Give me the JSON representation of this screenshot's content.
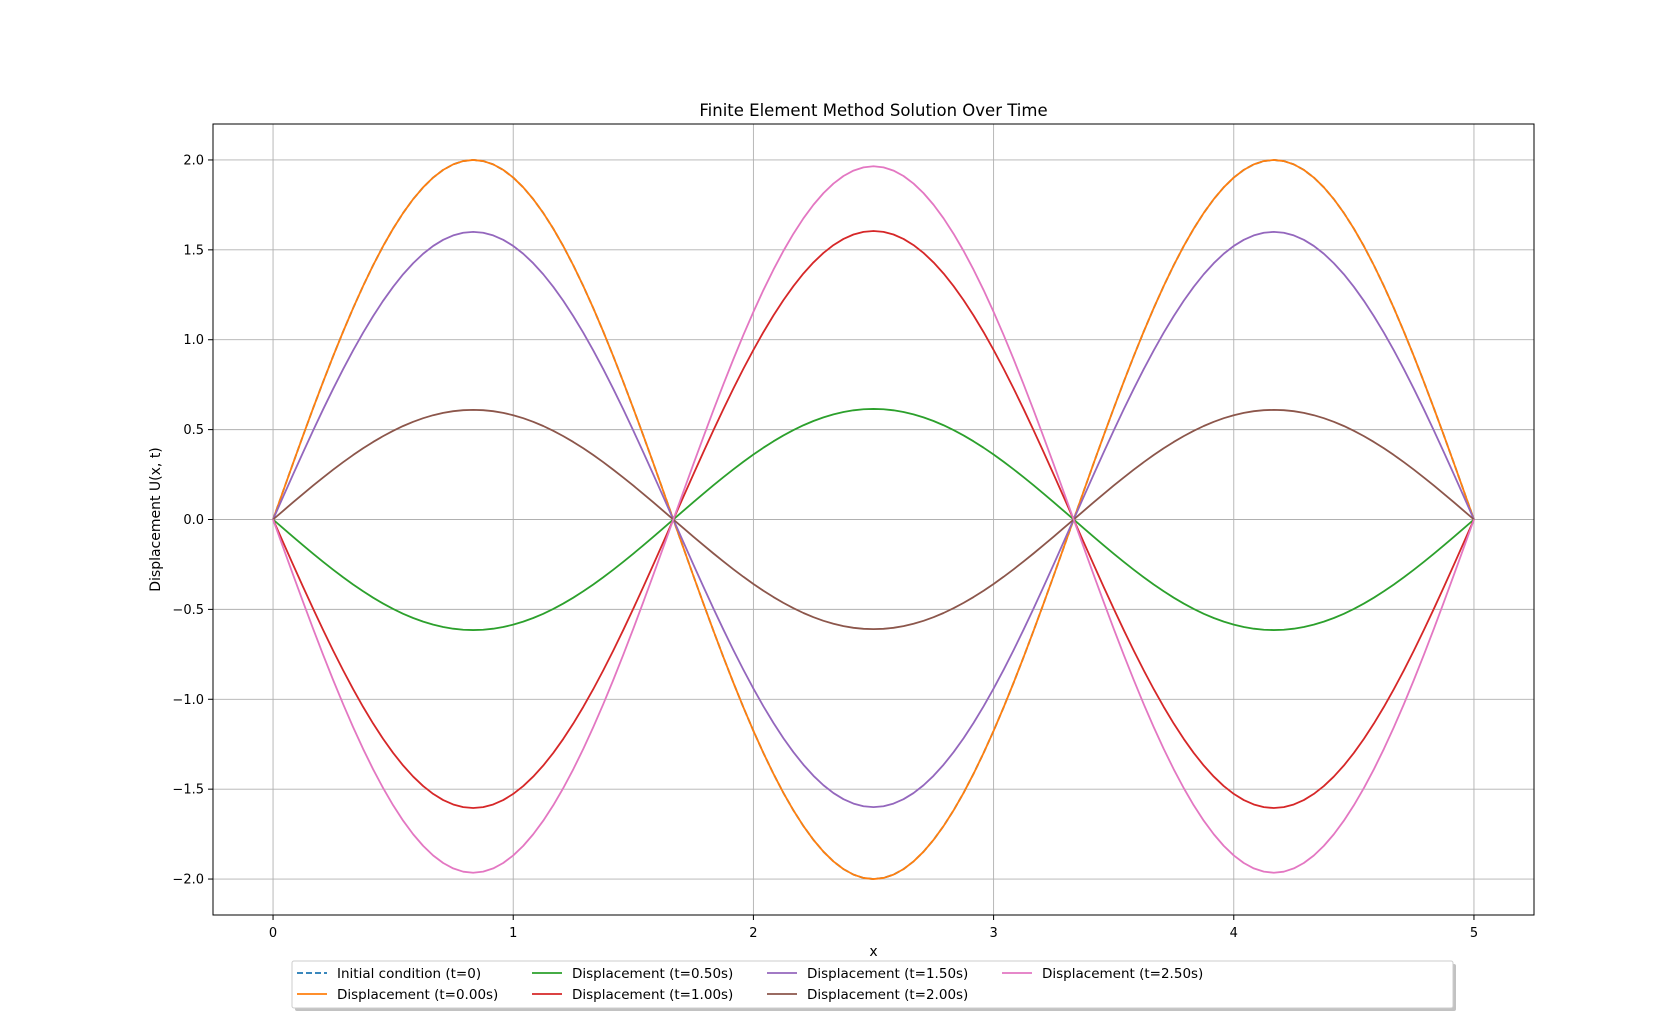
{
  "chart_data": {
    "type": "line",
    "title": "Finite Element Method Solution Over Time",
    "xlabel": "x",
    "ylabel": "Displacement U(x, t)",
    "xlim": [
      -0.25,
      5.25
    ],
    "ylim": [
      -2.2,
      2.2
    ],
    "xticks": [
      0,
      1,
      2,
      3,
      4,
      5
    ],
    "xtick_labels": [
      "0",
      "1",
      "2",
      "3",
      "4",
      "5"
    ],
    "yticks": [
      -2.0,
      -1.5,
      -1.0,
      -0.5,
      0.0,
      0.5,
      1.0,
      1.5,
      2.0
    ],
    "ytick_labels": [
      "−2.0",
      "−1.5",
      "−1.0",
      "−0.5",
      "0.0",
      "0.5",
      "1.0",
      "1.5",
      "2.0"
    ],
    "grid": true,
    "legend_placement": "bottom-center, below axes, 5 columns",
    "x": [
      0.0,
      0.0417,
      0.0833,
      0.125,
      0.1667,
      0.2083,
      0.25,
      0.2917,
      0.3333,
      0.375,
      0.4167,
      0.4583,
      0.5,
      0.5417,
      0.5833,
      0.625,
      0.6667,
      0.7083,
      0.75,
      0.7917,
      0.8333,
      0.875,
      0.9167,
      0.9583,
      1.0,
      1.0417,
      1.0833,
      1.125,
      1.1667,
      1.2083,
      1.25,
      1.2917,
      1.3333,
      1.375,
      1.4167,
      1.4583,
      1.5,
      1.5417,
      1.5833,
      1.625,
      1.6667,
      1.7083,
      1.75,
      1.7917,
      1.8333,
      1.875,
      1.9167,
      1.9583,
      2.0,
      2.0417,
      2.0833,
      2.125,
      2.1667,
      2.2083,
      2.25,
      2.2917,
      2.3333,
      2.375,
      2.4167,
      2.4583,
      2.5,
      2.5417,
      2.5833,
      2.625,
      2.6667,
      2.7083,
      2.75,
      2.7917,
      2.8333,
      2.875,
      2.9167,
      2.9583,
      3.0,
      3.0417,
      3.0833,
      3.125,
      3.1667,
      3.2083,
      3.25,
      3.2917,
      3.3333,
      3.375,
      3.4167,
      3.4583,
      3.5,
      3.5417,
      3.5833,
      3.625,
      3.6667,
      3.7083,
      3.75,
      3.7917,
      3.8333,
      3.875,
      3.9167,
      3.9583,
      4.0,
      4.0417,
      4.0833,
      4.125,
      4.1667,
      4.2083,
      4.25,
      4.2917,
      4.3333,
      4.375,
      4.4167,
      4.4583,
      4.5,
      4.5417,
      4.5833,
      4.625,
      4.6667,
      4.7083,
      4.75,
      4.7917,
      4.8333,
      4.875,
      4.9167,
      4.9583,
      5.0
    ],
    "base_shape": "sin(3*pi*x/5)",
    "series": [
      {
        "name": "Initial condition (t=0)",
        "color": "#1f77b4",
        "dashed": true,
        "amplitude": 2.0
      },
      {
        "name": "Displacement (t=0.00s)",
        "color": "#ff7f0e",
        "dashed": false,
        "amplitude": 2.0
      },
      {
        "name": "Displacement (t=0.50s)",
        "color": "#2ca02c",
        "dashed": false,
        "amplitude": -0.615
      },
      {
        "name": "Displacement (t=1.00s)",
        "color": "#d62728",
        "dashed": false,
        "amplitude": -1.605
      },
      {
        "name": "Displacement (t=1.50s)",
        "color": "#9467bd",
        "dashed": false,
        "amplitude": 1.6
      },
      {
        "name": "Displacement (t=2.00s)",
        "color": "#8c564b",
        "dashed": false,
        "amplitude": 0.61
      },
      {
        "name": "Displacement (t=2.50s)",
        "color": "#e377c2",
        "dashed": false,
        "amplitude": -1.965
      }
    ]
  }
}
